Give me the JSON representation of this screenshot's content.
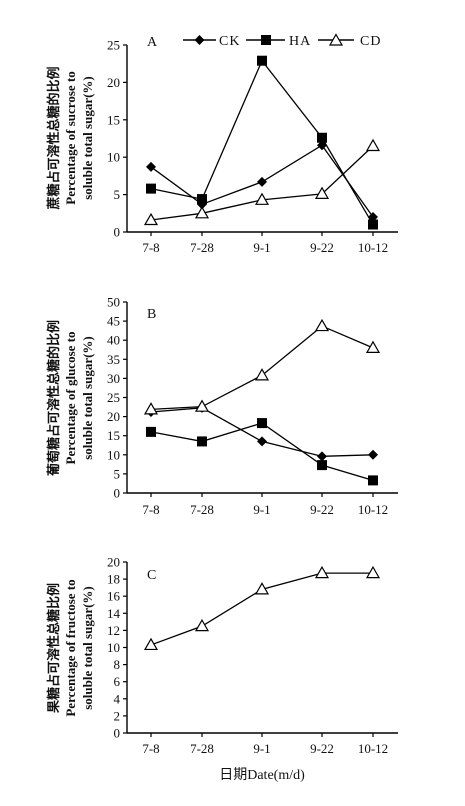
{
  "chart_data": [
    {
      "type": "line",
      "panel_label": "A",
      "ylabel_cn": "蔗糖占可溶性总糖的比例",
      "ylabel_en_1": "Percentage of sucrose to",
      "ylabel_en_2": "soluble total sugar(%)",
      "categories": [
        "7-8",
        "7-28",
        "9-1",
        "9-22",
        "10-12"
      ],
      "ylim": [
        0,
        25
      ],
      "yticks": [
        0,
        5,
        10,
        15,
        20,
        25
      ],
      "legend": "top",
      "series": [
        {
          "name": "CK",
          "marker": "diamond",
          "values": [
            8.7,
            3.7,
            6.7,
            11.6,
            2.0
          ]
        },
        {
          "name": "HA",
          "marker": "square",
          "values": [
            5.8,
            4.4,
            22.9,
            12.6,
            1.0
          ]
        },
        {
          "name": "CD",
          "marker": "triangle",
          "values": [
            1.6,
            2.5,
            4.3,
            5.1,
            11.5
          ]
        }
      ]
    },
    {
      "type": "line",
      "panel_label": "B",
      "ylabel_cn": "葡萄糖占可溶性总糖的比例",
      "ylabel_en_1": "Percentage of glucose to",
      "ylabel_en_2": "soluble total sugar(%)",
      "categories": [
        "7-8",
        "7-28",
        "9-1",
        "9-22",
        "10-12"
      ],
      "ylim": [
        0,
        50
      ],
      "yticks": [
        0,
        5,
        10,
        15,
        20,
        25,
        30,
        35,
        40,
        45,
        50
      ],
      "series": [
        {
          "name": "CK",
          "marker": "diamond",
          "values": [
            21.2,
            22.3,
            13.5,
            9.6,
            10.0
          ]
        },
        {
          "name": "HA",
          "marker": "square",
          "values": [
            16.0,
            13.5,
            18.3,
            7.3,
            3.3
          ]
        },
        {
          "name": "CD",
          "marker": "triangle",
          "values": [
            21.9,
            22.6,
            30.8,
            43.7,
            38.0
          ]
        }
      ]
    },
    {
      "type": "line",
      "panel_label": "C",
      "ylabel_cn": "果糖占可溶性总糖比例",
      "ylabel_en_1": "Percentage of fructose to",
      "ylabel_en_2": "soluble total sugar(%)",
      "categories": [
        "7-8",
        "7-28",
        "9-1",
        "9-22",
        "10-12"
      ],
      "ylim": [
        0,
        20
      ],
      "yticks": [
        0,
        2,
        4,
        6,
        8,
        10,
        12,
        14,
        16,
        18,
        20
      ],
      "series": [
        {
          "name": "CD",
          "marker": "triangle",
          "values": [
            10.3,
            12.5,
            16.8,
            18.7,
            18.7
          ]
        }
      ]
    }
  ],
  "xlabel": "日期Date(m/d)"
}
